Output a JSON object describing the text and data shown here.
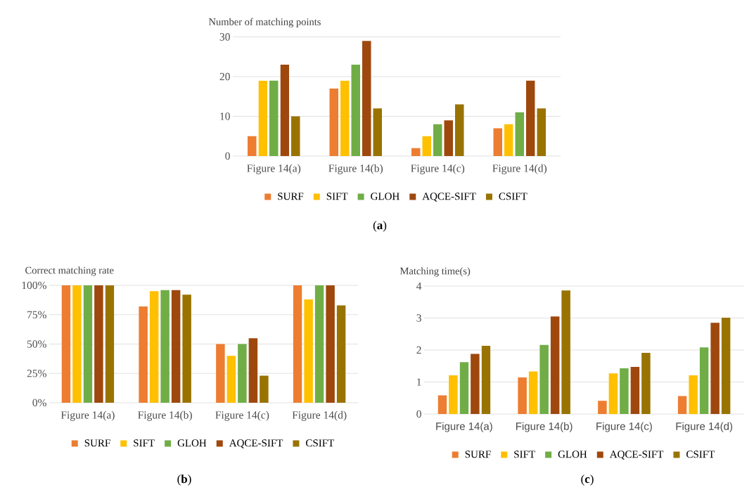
{
  "chart_data": [
    {
      "type": "bar",
      "ylabel": "Number of matching points",
      "categories": [
        "Figure 14(a)",
        "Figure 14(b)",
        "Figure 14(c)",
        "Figure 14(d)"
      ],
      "series": [
        {
          "name": "SURF",
          "color": "#ed7d31",
          "values": [
            5,
            17,
            2,
            7
          ]
        },
        {
          "name": "SIFT",
          "color": "#ffc000",
          "values": [
            19,
            19,
            5,
            8
          ]
        },
        {
          "name": "GLOH",
          "color": "#70ad47",
          "values": [
            19,
            23,
            8,
            11
          ]
        },
        {
          "name": "AQCE-SIFT",
          "color": "#9e480e",
          "values": [
            23,
            29,
            9,
            19
          ]
        },
        {
          "name": "CSIFT",
          "color": "#997300",
          "values": [
            10,
            12,
            13,
            12
          ]
        }
      ],
      "ylim": [
        0,
        30
      ],
      "yticks": [
        0,
        10,
        20,
        30
      ],
      "grid": "y",
      "legend": "bottom",
      "annotations": [
        "(**a**)"
      ]
    },
    {
      "type": "bar",
      "ylabel": "Correct matching rate",
      "categories": [
        "Figure 14(a)",
        "Figure 14(b)",
        "Figure 14(c)",
        "Figure 14(d)"
      ],
      "series": [
        {
          "name": "SURF",
          "color": "#ed7d31",
          "values": [
            100,
            82,
            50,
            100
          ]
        },
        {
          "name": "SIFT",
          "color": "#ffc000",
          "values": [
            100,
            95,
            40,
            88
          ]
        },
        {
          "name": "GLOH",
          "color": "#70ad47",
          "values": [
            100,
            96,
            50,
            100
          ]
        },
        {
          "name": "AQCE-SIFT",
          "color": "#9e480e",
          "values": [
            100,
            96,
            55,
            100
          ]
        },
        {
          "name": "CSIFT",
          "color": "#997300",
          "values": [
            100,
            92,
            23,
            83
          ]
        }
      ],
      "ylim": [
        0,
        100
      ],
      "yticks": [
        {
          "value": 0,
          "label": "0%"
        },
        {
          "value": 25,
          "label": "25%"
        },
        {
          "value": 50,
          "label": "50%"
        },
        {
          "value": 75,
          "label": "75%"
        },
        {
          "value": 100,
          "label": "100%"
        }
      ],
      "grid": "y",
      "legend": "bottom",
      "annotations": [
        "(**b**)"
      ]
    },
    {
      "type": "bar",
      "ylabel": "Matching time(s)",
      "categories": [
        "Figure 14(a)",
        "Figure 14(b)",
        "Figure 14(c)",
        "Figure 14(d)"
      ],
      "series": [
        {
          "name": "SURF",
          "color": "#ed7d31",
          "values": [
            0.58,
            1.14,
            0.41,
            0.56
          ]
        },
        {
          "name": "SIFT",
          "color": "#ffc000",
          "values": [
            1.21,
            1.33,
            1.27,
            1.21
          ]
        },
        {
          "name": "GLOH",
          "color": "#70ad47",
          "values": [
            1.62,
            2.16,
            1.43,
            2.08
          ]
        },
        {
          "name": "AQCE-SIFT",
          "color": "#9e480e",
          "values": [
            1.88,
            3.05,
            1.47,
            2.85
          ]
        },
        {
          "name": "CSIFT",
          "color": "#997300",
          "values": [
            2.13,
            3.86,
            1.91,
            3.01
          ]
        }
      ],
      "ylim": [
        0,
        4
      ],
      "yticks": [
        0,
        1,
        2,
        3,
        4
      ],
      "grid": "y",
      "legend": "bottom",
      "annotations": [
        "(**c**)"
      ]
    }
  ]
}
